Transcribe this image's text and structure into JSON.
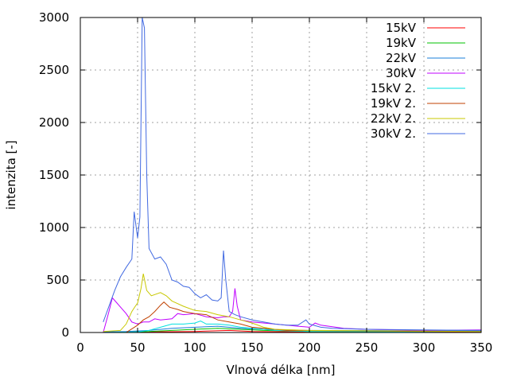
{
  "chart_data": {
    "type": "line",
    "title": "",
    "xlabel": "Vlnová délka [nm]",
    "ylabel": "intenzita [-]",
    "xlim": [
      0,
      350
    ],
    "ylim": [
      0,
      3000
    ],
    "xticks": [
      0,
      50,
      100,
      150,
      200,
      250,
      300,
      350
    ],
    "yticks": [
      0,
      500,
      1000,
      1500,
      2000,
      2500,
      3000
    ],
    "grid": true,
    "legend_position": "top-right",
    "series": [
      {
        "name": "15kV",
        "color": "#ff0000",
        "x": [
          20,
          60,
          100,
          130,
          150,
          200,
          350
        ],
        "y": [
          0,
          5,
          10,
          20,
          10,
          5,
          5
        ]
      },
      {
        "name": "19kV",
        "color": "#00c000",
        "x": [
          20,
          60,
          80,
          100,
          120,
          140,
          160,
          200,
          350
        ],
        "y": [
          0,
          10,
          20,
          30,
          40,
          30,
          20,
          10,
          5
        ]
      },
      {
        "name": "22kV",
        "color": "#1a7fd8",
        "x": [
          20,
          40,
          60,
          80,
          100,
          120,
          140,
          160,
          200,
          350
        ],
        "y": [
          5,
          10,
          20,
          40,
          50,
          60,
          40,
          30,
          20,
          15
        ]
      },
      {
        "name": "30kV",
        "color": "#c000ff",
        "x": [
          20,
          25,
          28,
          32,
          36,
          40,
          45,
          50,
          55,
          60,
          65,
          70,
          80,
          85,
          90,
          100,
          110,
          120,
          125,
          130,
          133,
          135,
          137,
          140,
          150,
          170,
          190,
          200,
          205,
          210,
          230,
          250,
          300,
          350
        ],
        "y": [
          0,
          200,
          330,
          280,
          230,
          180,
          100,
          80,
          100,
          100,
          130,
          120,
          130,
          180,
          170,
          180,
          150,
          140,
          150,
          150,
          200,
          420,
          250,
          120,
          100,
          80,
          60,
          50,
          90,
          70,
          40,
          30,
          20,
          25
        ]
      },
      {
        "name": "15kV 2.",
        "color": "#00e0e0",
        "x": [
          20,
          50,
          60,
          70,
          80,
          90,
          100,
          105,
          110,
          120,
          130,
          140,
          150,
          170,
          200,
          350
        ],
        "y": [
          0,
          5,
          20,
          50,
          80,
          80,
          90,
          110,
          80,
          80,
          70,
          50,
          40,
          20,
          10,
          5
        ]
      },
      {
        "name": "19kV 2.",
        "color": "#c04000",
        "x": [
          20,
          40,
          50,
          55,
          60,
          65,
          70,
          73,
          78,
          85,
          90,
          100,
          110,
          120,
          130,
          140,
          150,
          160,
          180,
          350
        ],
        "y": [
          0,
          0,
          70,
          120,
          150,
          200,
          260,
          290,
          240,
          220,
          200,
          180,
          170,
          120,
          100,
          80,
          50,
          40,
          20,
          5
        ]
      },
      {
        "name": "22kV 2.",
        "color": "#c8c800",
        "x": [
          20,
          35,
          40,
          45,
          48,
          50,
          53,
          55,
          58,
          62,
          70,
          75,
          80,
          90,
          100,
          110,
          120,
          130,
          140,
          150,
          160,
          170,
          200,
          350
        ],
        "y": [
          10,
          20,
          80,
          200,
          250,
          280,
          420,
          560,
          400,
          350,
          380,
          350,
          300,
          250,
          210,
          200,
          170,
          150,
          120,
          90,
          50,
          30,
          20,
          10
        ]
      },
      {
        "name": "30kV 2.",
        "color": "#4169e1",
        "x": [
          20,
          25,
          30,
          35,
          40,
          45,
          47,
          50,
          52,
          54,
          56,
          58,
          60,
          65,
          70,
          75,
          80,
          85,
          90,
          95,
          100,
          105,
          110,
          115,
          120,
          123,
          125,
          127,
          130,
          135,
          140,
          150,
          160,
          170,
          180,
          190,
          197,
          200,
          210,
          220,
          250,
          300,
          350
        ],
        "y": [
          100,
          250,
          400,
          530,
          620,
          700,
          1150,
          900,
          1100,
          3000,
          2900,
          1500,
          800,
          700,
          720,
          650,
          500,
          480,
          440,
          430,
          370,
          330,
          360,
          310,
          300,
          330,
          780,
          500,
          200,
          170,
          150,
          120,
          100,
          80,
          70,
          70,
          120,
          80,
          50,
          40,
          30,
          25,
          20
        ]
      }
    ]
  }
}
